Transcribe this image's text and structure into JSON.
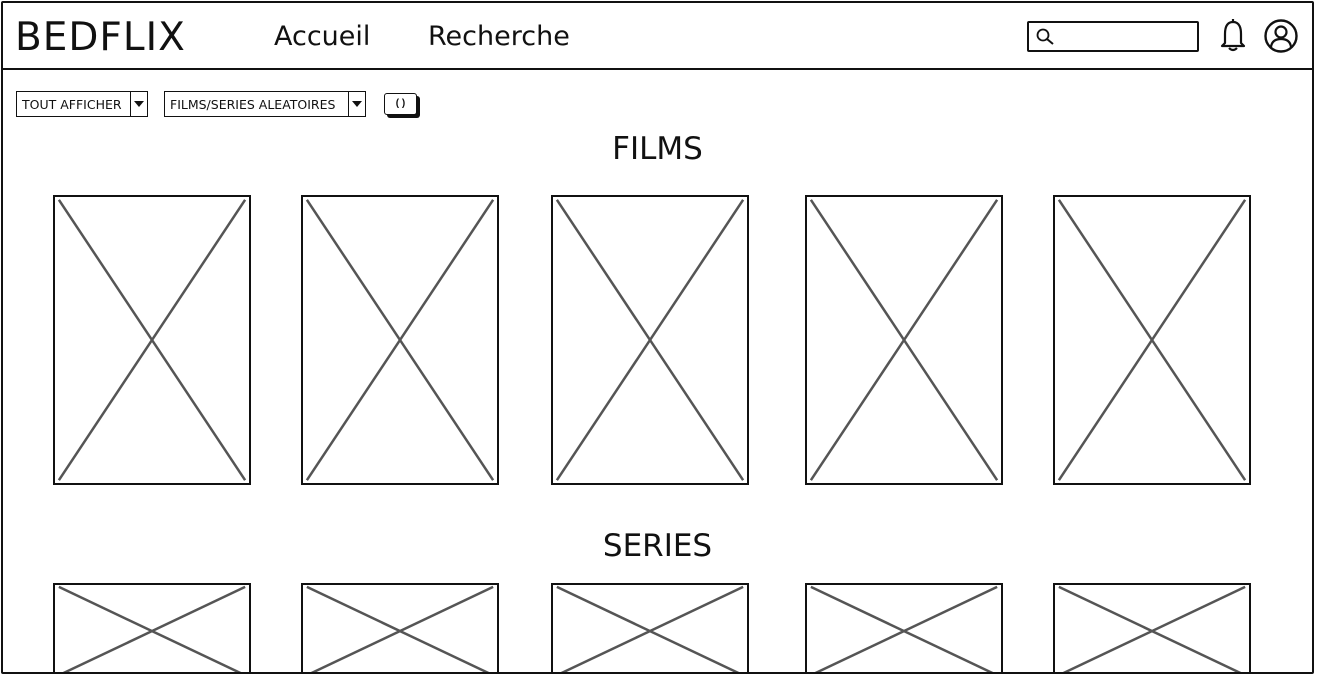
{
  "app": {
    "title": "BEDFLIX"
  },
  "nav": {
    "items": [
      {
        "label": "Accueil"
      },
      {
        "label": "Recherche"
      }
    ]
  },
  "search": {
    "value": "",
    "placeholder": ""
  },
  "filters": {
    "show_all": "TOUT AFFICHER",
    "random": "FILMS/SERIES ALEATOIRES",
    "shuffle_symbol": "( )"
  },
  "sections": {
    "films": {
      "title": "FILMS"
    },
    "series": {
      "title": "SERIES"
    }
  },
  "icons": {
    "search": "search-icon",
    "notifications": "bell-icon",
    "account": "user-icon",
    "dropdown": "chevron-down-icon",
    "poster": "image-placeholder-icon"
  }
}
